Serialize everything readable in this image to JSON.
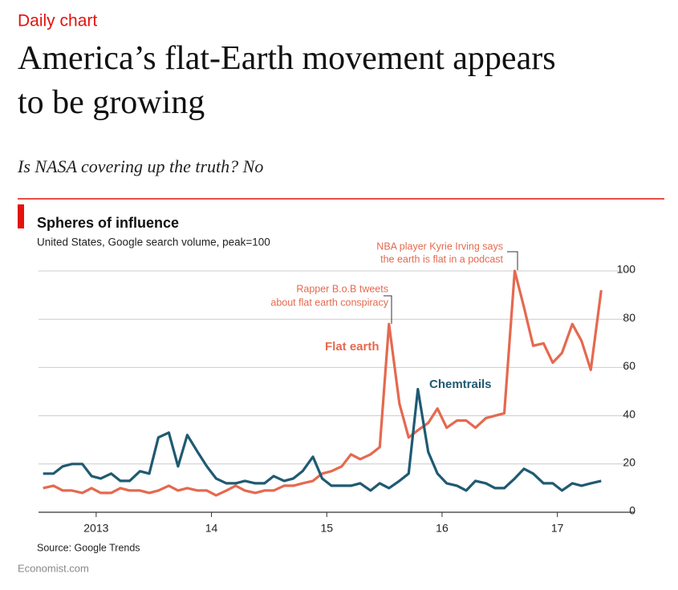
{
  "header": {
    "kicker": "Daily chart",
    "title": "America’s flat-Earth movement appears to be growing",
    "subtitle": "Is NASA covering up the truth? No"
  },
  "chart_data": {
    "type": "line",
    "title": "Spheres of influence",
    "subtitle": "United States, Google search volume, peak=100",
    "x": [
      2013.04,
      2013.13,
      2013.21,
      2013.29,
      2013.38,
      2013.46,
      2013.54,
      2013.63,
      2013.71,
      2013.79,
      2013.88,
      2013.96,
      2014.04,
      2014.13,
      2014.21,
      2014.29,
      2014.38,
      2014.46,
      2014.54,
      2014.63,
      2014.71,
      2014.79,
      2014.88,
      2014.96,
      2015.04,
      2015.13,
      2015.21,
      2015.29,
      2015.38,
      2015.46,
      2015.54,
      2015.63,
      2015.71,
      2015.79,
      2015.88,
      2015.96,
      2016.04,
      2016.13,
      2016.21,
      2016.29,
      2016.38,
      2016.46,
      2016.54,
      2016.63,
      2016.71,
      2016.79,
      2016.88,
      2016.96,
      2017.04,
      2017.13,
      2017.21,
      2017.29,
      2017.38,
      2017.46,
      2017.54,
      2017.63,
      2017.71,
      2017.79,
      2017.88
    ],
    "series": [
      {
        "name": "Flat earth",
        "color": "#e5694f",
        "values": [
          10,
          11,
          9,
          9,
          8,
          10,
          8,
          8,
          10,
          9,
          9,
          8,
          9,
          11,
          9,
          10,
          9,
          9,
          7,
          9,
          11,
          9,
          8,
          9,
          9,
          11,
          11,
          12,
          13,
          16,
          17,
          19,
          24,
          22,
          24,
          27,
          78,
          45,
          31,
          34,
          37,
          43,
          35,
          38,
          38,
          35,
          39,
          40,
          41,
          100,
          85,
          69,
          70,
          62,
          66,
          78,
          71,
          59,
          92
        ]
      },
      {
        "name": "Chemtrails",
        "color": "#1f5a72",
        "values": [
          16,
          16,
          19,
          20,
          20,
          15,
          14,
          16,
          13,
          13,
          17,
          16,
          31,
          33,
          19,
          32,
          25,
          19,
          14,
          12,
          12,
          13,
          12,
          12,
          15,
          13,
          14,
          17,
          23,
          14,
          11,
          11,
          11,
          12,
          9,
          12,
          10,
          13,
          16,
          51,
          25,
          16,
          12,
          11,
          9,
          13,
          12,
          10,
          10,
          14,
          18,
          16,
          12,
          12,
          9,
          12,
          11,
          12,
          13
        ]
      }
    ],
    "xlim": [
      2013,
      2017.92
    ],
    "xticks": [
      {
        "value": 2013.5,
        "label": "2013"
      },
      {
        "value": 2014.5,
        "label": "14"
      },
      {
        "value": 2015.5,
        "label": "15"
      },
      {
        "value": 2016.5,
        "label": "16"
      },
      {
        "value": 2017.5,
        "label": "17"
      }
    ],
    "ylim": [
      0,
      100
    ],
    "yticks": [
      0,
      20,
      40,
      60,
      80,
      100
    ],
    "grid": true,
    "annotations": [
      {
        "lines": [
          "Rapper B.o.B tweets",
          "about flat earth conspiracy"
        ]
      },
      {
        "lines": [
          "NBA player Kyrie Irving says",
          "the earth is flat in a podcast"
        ]
      }
    ],
    "source": "Source: Google Trends"
  },
  "footer": {
    "credit": "Economist.com"
  }
}
